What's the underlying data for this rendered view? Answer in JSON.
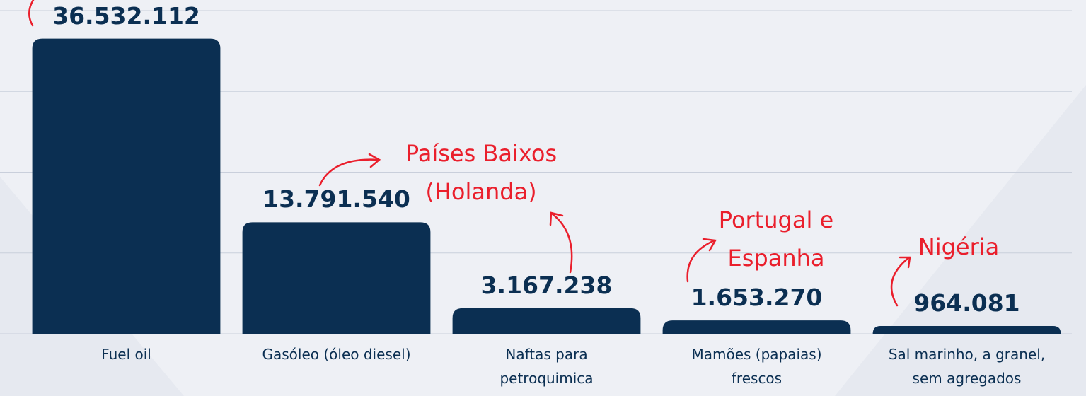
{
  "chart_data": {
    "type": "bar",
    "categories": [
      "Fuel oil",
      "Gasóleo (óleo diesel)",
      "Naftas para petroquimica",
      "Mamões (papaias) frescos",
      "Sal marinho, a granel, sem agregados"
    ],
    "values": [
      36532112,
      13791540,
      3167238,
      1653270,
      964081
    ],
    "value_labels": [
      "36.532.112",
      "13.791.540",
      "3.167.238",
      "1.653.270",
      "964.081"
    ],
    "color": "#0b2f52",
    "ylim": [
      0,
      40000000
    ],
    "yticks": [
      0,
      10000000,
      20000000,
      30000000,
      40000000
    ],
    "grid": true,
    "annotations": [
      "Países Baixos (Holanda)",
      "Portugal e Espanha",
      "Nigéria"
    ],
    "annotation_color": "#ea1f2c"
  }
}
